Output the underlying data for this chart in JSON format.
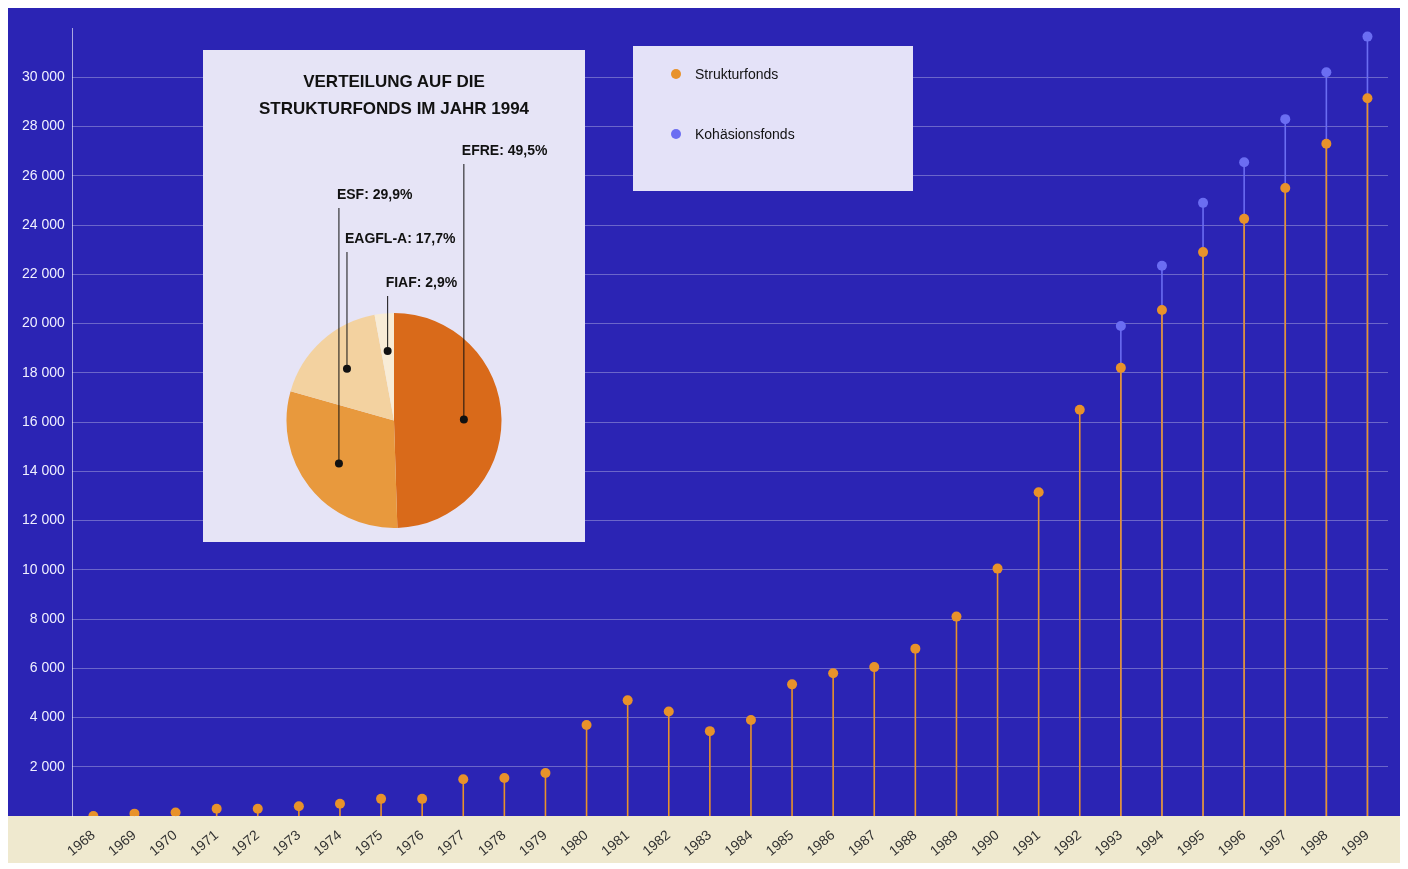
{
  "chart_data": [
    {
      "type": "lollipop",
      "categories": [
        "1968",
        "1969",
        "1970",
        "1971",
        "1972",
        "1973",
        "1974",
        "1975",
        "1976",
        "1977",
        "1978",
        "1979",
        "1980",
        "1981",
        "1982",
        "1983",
        "1984",
        "1985",
        "1986",
        "1987",
        "1988",
        "1989",
        "1990",
        "1991",
        "1992",
        "1993",
        "1994",
        "1995",
        "1996",
        "1997",
        "1998",
        "1999"
      ],
      "series": [
        {
          "name": "Strukturfonds",
          "color": "#e8922a",
          "values": [
            0,
            100,
            150,
            300,
            300,
            400,
            500,
            700,
            700,
            1500,
            1550,
            1750,
            3700,
            4700,
            4250,
            3450,
            3900,
            5350,
            5800,
            6050,
            6800,
            8100,
            10050,
            13150,
            16500,
            18200,
            20550,
            22900,
            24250,
            25500,
            27300,
            29150
          ]
        },
        {
          "name": "Kohäsionsfonds",
          "color": "#6b6df2",
          "values": [
            null,
            null,
            null,
            null,
            null,
            null,
            null,
            null,
            null,
            null,
            null,
            null,
            null,
            null,
            null,
            null,
            null,
            null,
            null,
            null,
            null,
            null,
            null,
            null,
            null,
            19900,
            22350,
            24900,
            26550,
            28300,
            30200,
            31650
          ]
        }
      ],
      "ylim": [
        0,
        32000
      ],
      "yticks": [
        {
          "value": 2000,
          "label": "2 000"
        },
        {
          "value": 4000,
          "label": "4 000"
        },
        {
          "value": 6000,
          "label": "6 000"
        },
        {
          "value": 8000,
          "label": "8 000"
        },
        {
          "value": 10000,
          "label": "10 000"
        },
        {
          "value": 12000,
          "label": "12 000"
        },
        {
          "value": 14000,
          "label": "14 000"
        },
        {
          "value": 16000,
          "label": "16 000"
        },
        {
          "value": 18000,
          "label": "18 000"
        },
        {
          "value": 20000,
          "label": "20 000"
        },
        {
          "value": 22000,
          "label": "22 000"
        },
        {
          "value": 24000,
          "label": "24 000"
        },
        {
          "value": 26000,
          "label": "26 000"
        },
        {
          "value": 28000,
          "label": "28 000"
        },
        {
          "value": 30000,
          "label": "30 000"
        }
      ],
      "grid": "y",
      "legend": "top",
      "marker": "circle"
    },
    {
      "type": "pie",
      "title": "VERTEILUNG AUF DIE STRUKTURFONDS IM JAHR 1994",
      "categories": [
        "EFRE",
        "ESF",
        "EAGFL-A",
        "FIAF"
      ],
      "values": [
        49.5,
        29.9,
        17.7,
        2.9
      ],
      "value_labels": [
        "49,5%",
        "29,9%",
        "17,7%",
        "2,9%"
      ],
      "colors": [
        "#d96a1a",
        "#e8993d",
        "#f3d2a0",
        "#f8ecd6"
      ]
    }
  ]
}
